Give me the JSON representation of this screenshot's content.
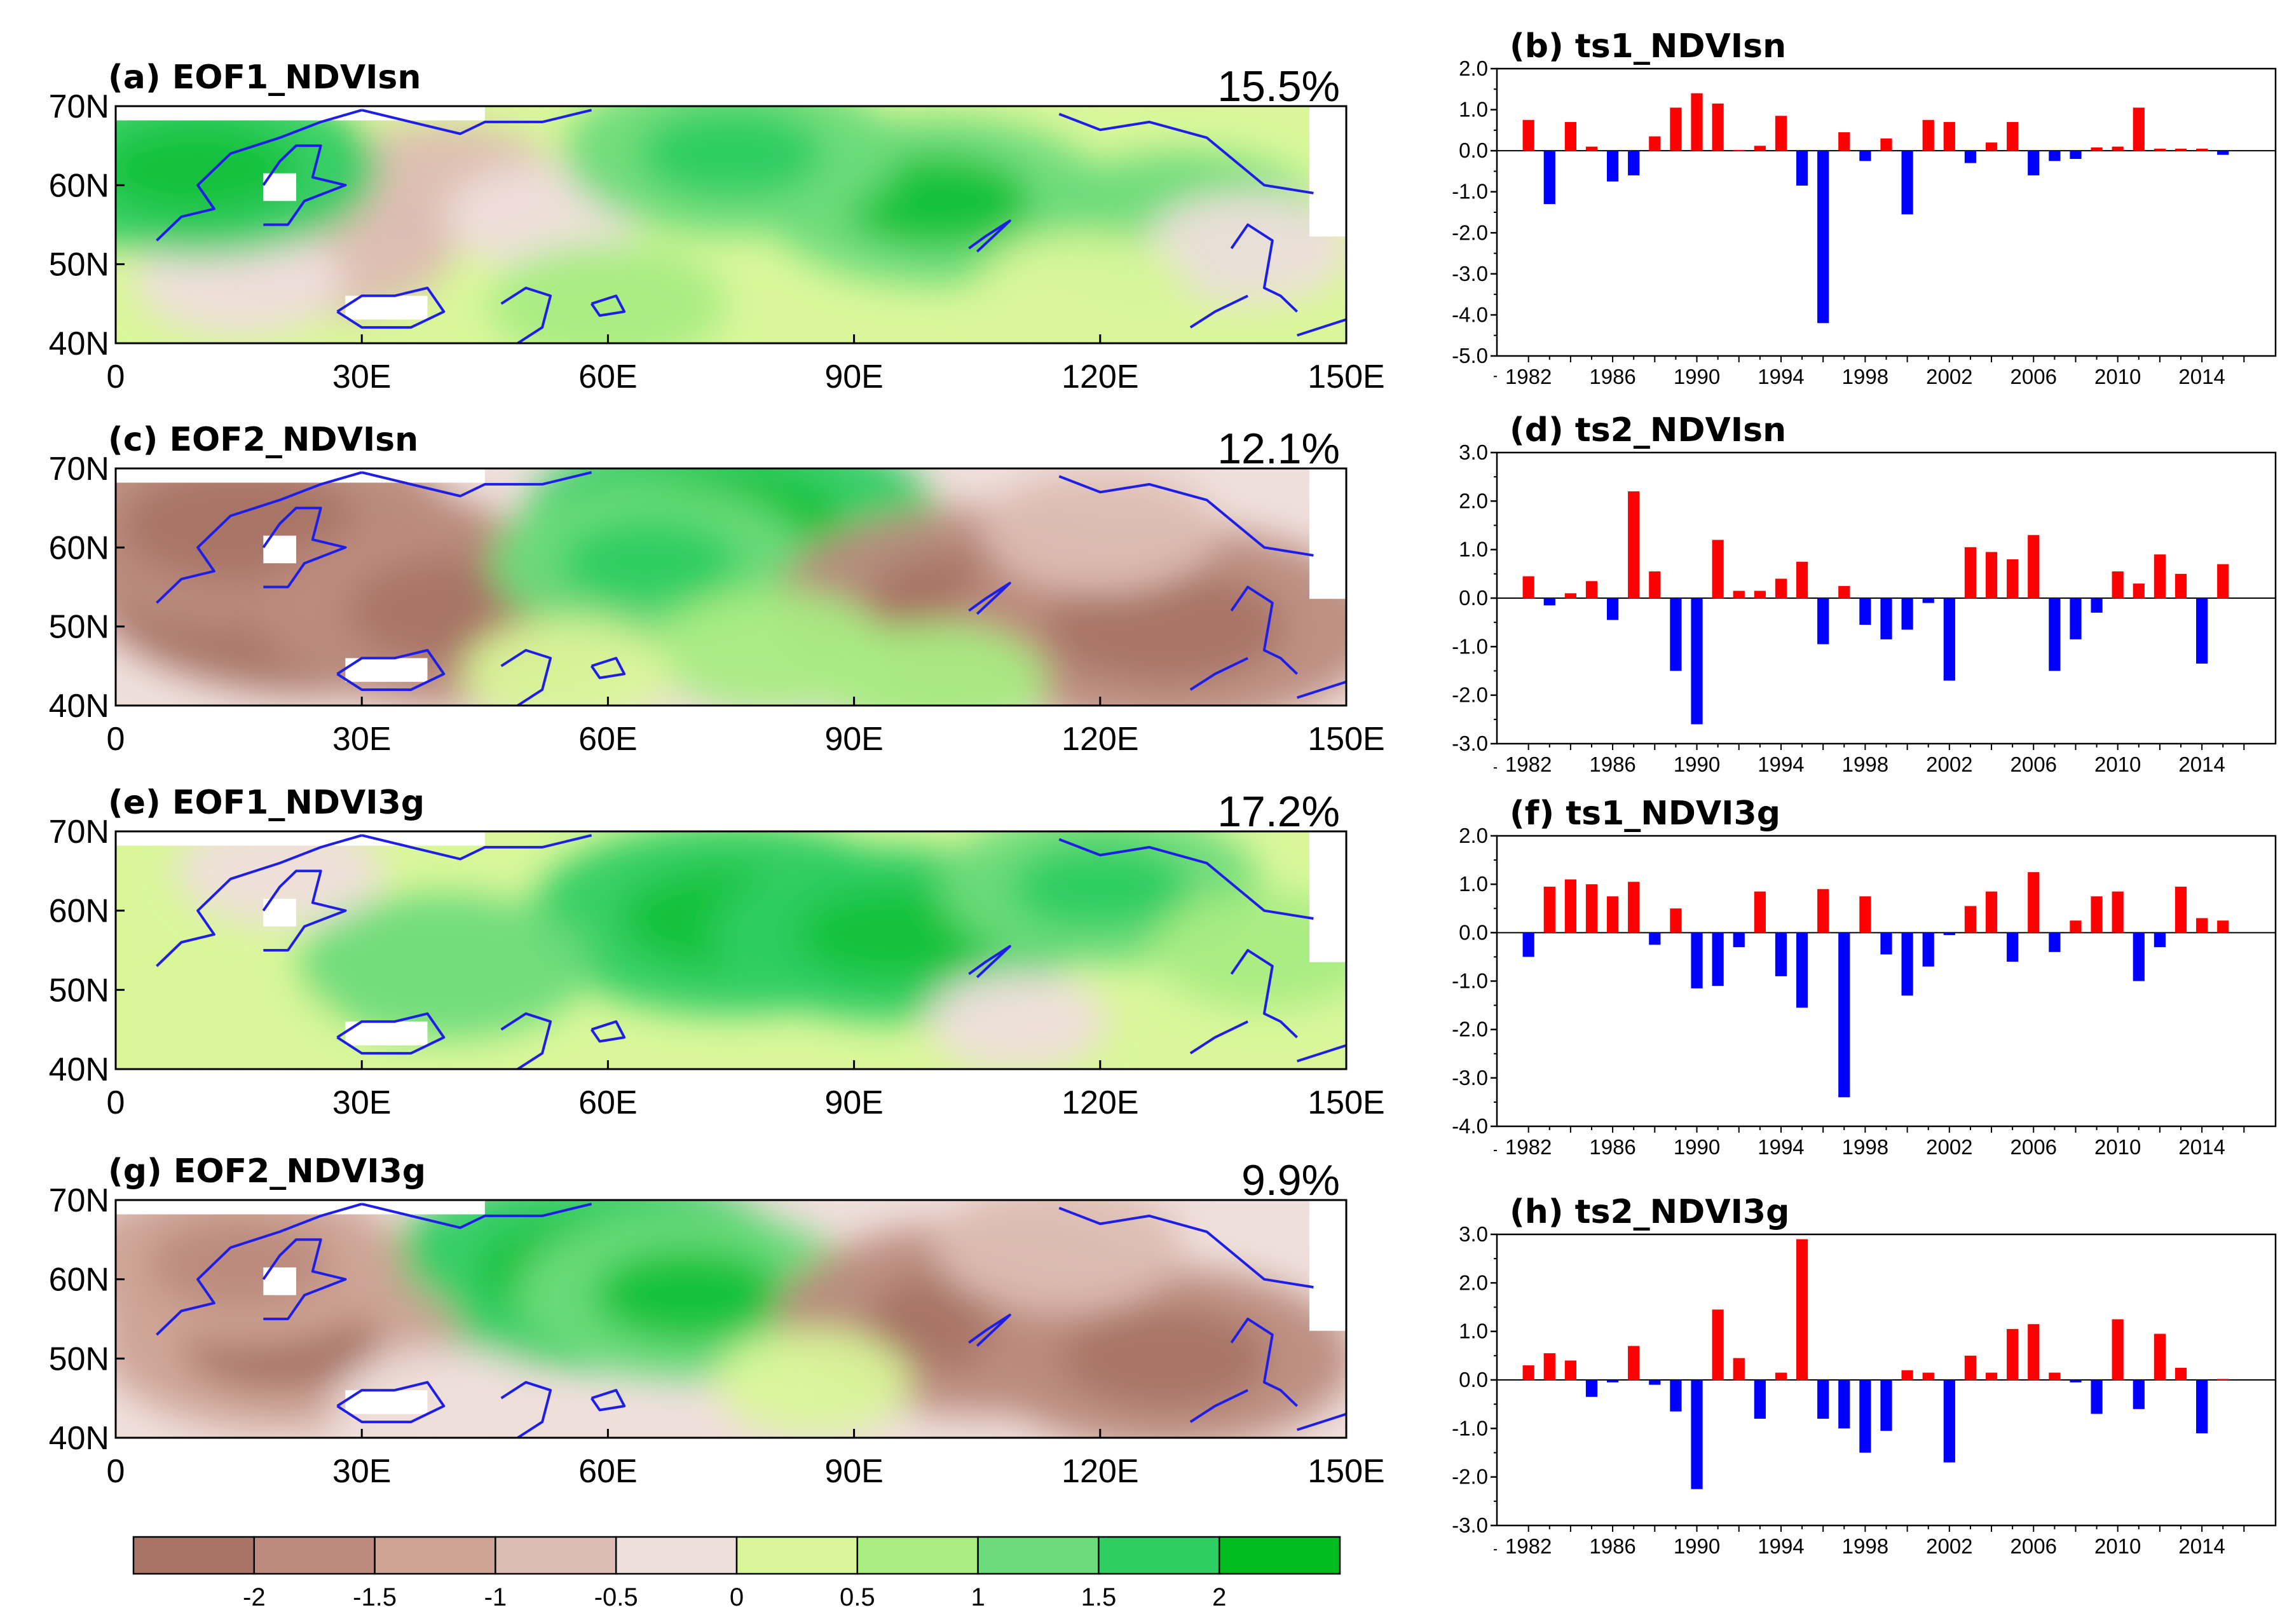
{
  "colors": {
    "positive_bar": "#ff0000",
    "negative_bar": "#0000ff",
    "coastline": "#1e1ee6",
    "scale": [
      "#a87466",
      "#bc8b7e",
      "#cda396",
      "#ddbdb3",
      "#efdfdb",
      "#d9f79a",
      "#a8ec82",
      "#6ddb7a",
      "#2fce63",
      "#17c23d",
      "#00be20"
    ]
  },
  "colorbar": {
    "labels": [
      "-2",
      "-1.5",
      "-1",
      "-0.5",
      "0",
      "0.5",
      "1",
      "1.5",
      "2"
    ]
  },
  "chart_data": [
    {
      "type": "heatmap",
      "id": "a",
      "title": "(a) EOF1_NDVIsn",
      "variance_label": "15.5%",
      "xticks": [
        "0",
        "30E",
        "60E",
        "90E",
        "120E",
        "150E"
      ],
      "yticks": [
        "70N",
        "60N",
        "50N",
        "40N"
      ],
      "xlim": [
        0,
        150
      ],
      "ylim": [
        40,
        70
      ],
      "pattern": [
        {
          "lon": 40,
          "lat": 60,
          "value": -0.6
        },
        {
          "lon": 25,
          "lat": 52,
          "value": -0.8
        },
        {
          "lon": 15,
          "lat": 48,
          "value": -0.4
        },
        {
          "lon": 52,
          "lat": 56,
          "value": -0.3
        },
        {
          "lon": 100,
          "lat": 58,
          "value": 1.4
        },
        {
          "lon": 75,
          "lat": 64,
          "value": 1.3
        },
        {
          "lon": 10,
          "lat": 62,
          "value": 1.5
        },
        {
          "lon": 130,
          "lat": 55,
          "value": 1.0
        },
        {
          "lon": 138,
          "lat": 52,
          "value": -0.4
        },
        {
          "lon": 118,
          "lat": 47,
          "value": 0.4
        },
        {
          "lon": 60,
          "lat": 45,
          "value": 0.6
        }
      ]
    },
    {
      "type": "bar",
      "id": "b",
      "title": "(b) ts1_NDVIsn",
      "yticks": [
        "2.0",
        "1.0",
        "0.0",
        "-1.0",
        "-2.0",
        "-3.0",
        "-4.0",
        "-5.0"
      ],
      "xticks": [
        "1982",
        "1986",
        "1990",
        "1994",
        "1998",
        "2002",
        "2006",
        "2010",
        "2014"
      ],
      "ylim": [
        -5,
        2
      ],
      "categories": [
        1982,
        1983,
        1984,
        1985,
        1986,
        1987,
        1988,
        1989,
        1990,
        1991,
        1992,
        1993,
        1994,
        1995,
        1996,
        1997,
        1998,
        1999,
        2000,
        2001,
        2002,
        2003,
        2004,
        2005,
        2006,
        2007,
        2008,
        2009,
        2010,
        2011,
        2012,
        2013,
        2014,
        2015
      ],
      "values": [
        0.75,
        -1.3,
        0.7,
        0.1,
        -0.75,
        -0.6,
        0.35,
        1.05,
        1.4,
        1.15,
        0.02,
        0.12,
        0.85,
        -0.85,
        -4.2,
        0.45,
        -0.25,
        0.3,
        -1.55,
        0.75,
        0.7,
        -0.3,
        0.2,
        0.7,
        -0.6,
        -0.25,
        -0.2,
        0.08,
        0.1,
        1.05,
        0.05,
        0.05,
        0.05,
        -0.1
      ]
    },
    {
      "type": "heatmap",
      "id": "c",
      "title": "(c) EOF2_NDVIsn",
      "variance_label": "12.1%",
      "xticks": [
        "0",
        "30E",
        "60E",
        "90E",
        "120E",
        "150E"
      ],
      "yticks": [
        "70N",
        "60N",
        "50N",
        "40N"
      ],
      "xlim": [
        0,
        150
      ],
      "ylim": [
        40,
        70
      ],
      "pattern": [
        {
          "lon": 25,
          "lat": 55,
          "value": -2.2
        },
        {
          "lon": 15,
          "lat": 63,
          "value": -2.0
        },
        {
          "lon": 42,
          "lat": 52,
          "value": -1.8
        },
        {
          "lon": 75,
          "lat": 63,
          "value": 1.9
        },
        {
          "lon": 65,
          "lat": 58,
          "value": 1.2
        },
        {
          "lon": 105,
          "lat": 53,
          "value": -1.8
        },
        {
          "lon": 128,
          "lat": 50,
          "value": -2.0
        },
        {
          "lon": 120,
          "lat": 62,
          "value": -0.6
        },
        {
          "lon": 80,
          "lat": 47,
          "value": 0.6
        },
        {
          "lon": 100,
          "lat": 43,
          "value": 0.5
        },
        {
          "lon": 55,
          "lat": 44,
          "value": 0.4
        }
      ]
    },
    {
      "type": "bar",
      "id": "d",
      "title": "(d) ts2_NDVIsn",
      "yticks": [
        "3.0",
        "2.0",
        "1.0",
        "0.0",
        "-1.0",
        "-2.0",
        "-3.0"
      ],
      "xticks": [
        "1982",
        "1986",
        "1990",
        "1994",
        "1998",
        "2002",
        "2006",
        "2010",
        "2014"
      ],
      "ylim": [
        -3,
        3
      ],
      "categories": [
        1982,
        1983,
        1984,
        1985,
        1986,
        1987,
        1988,
        1989,
        1990,
        1991,
        1992,
        1993,
        1994,
        1995,
        1996,
        1997,
        1998,
        1999,
        2000,
        2001,
        2002,
        2003,
        2004,
        2005,
        2006,
        2007,
        2008,
        2009,
        2010,
        2011,
        2012,
        2013,
        2014,
        2015
      ],
      "values": [
        0.45,
        -0.15,
        0.1,
        0.35,
        -0.45,
        2.2,
        0.55,
        -1.5,
        -2.6,
        1.2,
        0.15,
        0.15,
        0.4,
        0.75,
        -0.95,
        0.25,
        -0.55,
        -0.85,
        -0.65,
        -0.1,
        -1.7,
        1.05,
        0.95,
        0.8,
        1.3,
        -1.5,
        -0.85,
        -0.3,
        0.55,
        0.3,
        0.9,
        0.5,
        -1.35,
        0.7
      ]
    },
    {
      "type": "heatmap",
      "id": "e",
      "title": "(e) EOF1_NDVI3g",
      "variance_label": "17.2%",
      "xticks": [
        "0",
        "30E",
        "60E",
        "90E",
        "120E",
        "150E"
      ],
      "yticks": [
        "70N",
        "60N",
        "50N",
        "40N"
      ],
      "xlim": [
        0,
        150
      ],
      "ylim": [
        40,
        70
      ],
      "pattern": [
        {
          "lon": 75,
          "lat": 59,
          "value": 1.8
        },
        {
          "lon": 95,
          "lat": 57,
          "value": 1.5
        },
        {
          "lon": 120,
          "lat": 63,
          "value": 1.2
        },
        {
          "lon": 40,
          "lat": 53,
          "value": 1.0
        },
        {
          "lon": 20,
          "lat": 65,
          "value": -0.4
        },
        {
          "lon": 15,
          "lat": 45,
          "value": 0.3
        },
        {
          "lon": 110,
          "lat": 46,
          "value": -0.2
        },
        {
          "lon": 140,
          "lat": 55,
          "value": 0.5
        }
      ]
    },
    {
      "type": "bar",
      "id": "f",
      "title": "(f) ts1_NDVI3g",
      "yticks": [
        "2.0",
        "1.0",
        "0.0",
        "-1.0",
        "-2.0",
        "-3.0",
        "-4.0"
      ],
      "xticks": [
        "1982",
        "1986",
        "1990",
        "1994",
        "1998",
        "2002",
        "2006",
        "2010",
        "2014"
      ],
      "ylim": [
        -4,
        2
      ],
      "categories": [
        1982,
        1983,
        1984,
        1985,
        1986,
        1987,
        1988,
        1989,
        1990,
        1991,
        1992,
        1993,
        1994,
        1995,
        1996,
        1997,
        1998,
        1999,
        2000,
        2001,
        2002,
        2003,
        2004,
        2005,
        2006,
        2007,
        2008,
        2009,
        2010,
        2011,
        2012,
        2013,
        2014,
        2015
      ],
      "values": [
        -0.5,
        0.95,
        1.1,
        1.0,
        0.75,
        1.05,
        -0.25,
        0.5,
        -1.15,
        -1.1,
        -0.3,
        0.85,
        -0.9,
        -1.55,
        0.9,
        -3.4,
        0.75,
        -0.45,
        -1.3,
        -0.7,
        -0.05,
        0.55,
        0.85,
        -0.6,
        1.25,
        -0.4,
        0.25,
        0.75,
        0.85,
        -1.0,
        -0.3,
        0.95,
        0.3,
        0.25
      ]
    },
    {
      "type": "heatmap",
      "id": "g",
      "title": "(g) EOF2_NDVI3g",
      "variance_label": "9.9%",
      "xticks": [
        "0",
        "30E",
        "60E",
        "90E",
        "120E",
        "150E"
      ],
      "yticks": [
        "70N",
        "60N",
        "50N",
        "40N"
      ],
      "xlim": [
        0,
        150
      ],
      "ylim": [
        40,
        70
      ],
      "pattern": [
        {
          "lon": 58,
          "lat": 61,
          "value": 1.9
        },
        {
          "lon": 70,
          "lat": 58,
          "value": 1.4
        },
        {
          "lon": 20,
          "lat": 52,
          "value": -1.5
        },
        {
          "lon": 15,
          "lat": 62,
          "value": -1.3
        },
        {
          "lon": 105,
          "lat": 55,
          "value": -1.8
        },
        {
          "lon": 128,
          "lat": 50,
          "value": -1.6
        },
        {
          "lon": 115,
          "lat": 64,
          "value": -0.7
        },
        {
          "lon": 85,
          "lat": 47,
          "value": 0.3
        },
        {
          "lon": 40,
          "lat": 44,
          "value": -0.5
        }
      ]
    },
    {
      "type": "bar",
      "id": "h",
      "title": "(h) ts2_NDVI3g",
      "yticks": [
        "3.0",
        "2.0",
        "1.0",
        "0.0",
        "-1.0",
        "-2.0",
        "-3.0"
      ],
      "xticks": [
        "1982",
        "1986",
        "1990",
        "1994",
        "1998",
        "2002",
        "2006",
        "2010",
        "2014"
      ],
      "ylim": [
        -3,
        3
      ],
      "categories": [
        1982,
        1983,
        1984,
        1985,
        1986,
        1987,
        1988,
        1989,
        1990,
        1991,
        1992,
        1993,
        1994,
        1995,
        1996,
        1997,
        1998,
        1999,
        2000,
        2001,
        2002,
        2003,
        2004,
        2005,
        2006,
        2007,
        2008,
        2009,
        2010,
        2011,
        2012,
        2013,
        2014,
        2015
      ],
      "values": [
        0.3,
        0.55,
        0.4,
        -0.35,
        -0.05,
        0.7,
        -0.1,
        -0.65,
        -2.25,
        1.45,
        0.45,
        -0.8,
        0.15,
        2.9,
        -0.8,
        -1.0,
        -1.5,
        -1.05,
        0.2,
        0.15,
        -1.7,
        0.5,
        0.15,
        1.05,
        1.15,
        0.15,
        -0.05,
        -0.7,
        1.25,
        -0.6,
        0.95,
        0.25,
        -1.1,
        0.02
      ]
    }
  ]
}
